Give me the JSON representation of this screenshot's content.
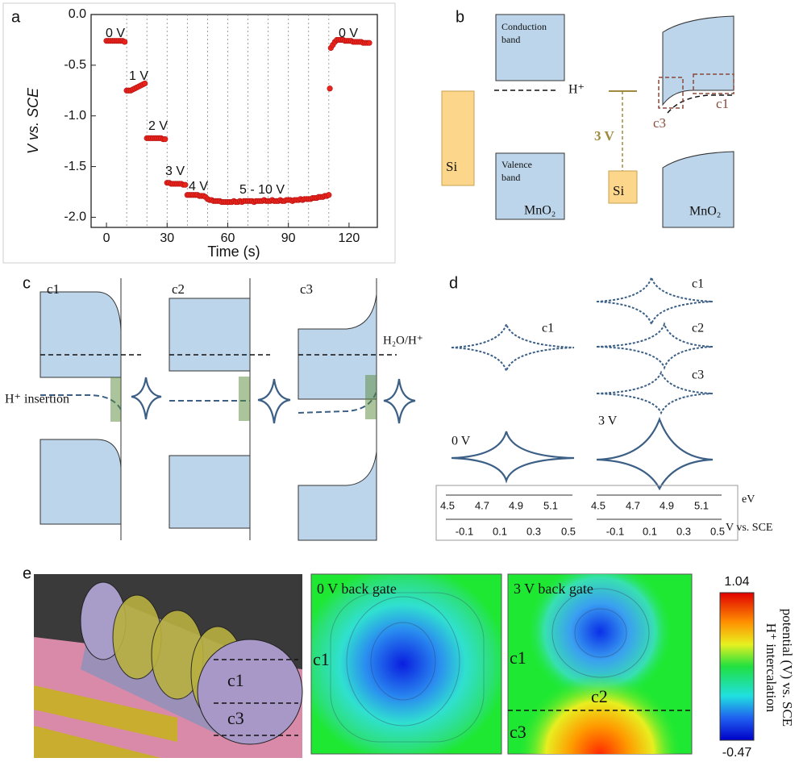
{
  "chart_data": {
    "type": "scatter",
    "panel": "a",
    "xlabel": "Time (s)",
    "ylabel": "V vs. SCE",
    "color": "#e8241c",
    "x": [
      0,
      1,
      2,
      3,
      4,
      5,
      6,
      7,
      8,
      9,
      10,
      11,
      12,
      13,
      14,
      15,
      16,
      17,
      18,
      19,
      20,
      21,
      22,
      23,
      24,
      25,
      26,
      27,
      28,
      29,
      30,
      31,
      32,
      33,
      34,
      35,
      36,
      37,
      38,
      39,
      40,
      41,
      42,
      43,
      44,
      45,
      46,
      47,
      48,
      49,
      50,
      51,
      52,
      53,
      54,
      55,
      56,
      57,
      58,
      59,
      60,
      61,
      62,
      63,
      64,
      65,
      66,
      67,
      68,
      69,
      70,
      71,
      72,
      73,
      74,
      75,
      76,
      77,
      78,
      79,
      80,
      81,
      82,
      83,
      84,
      85,
      86,
      87,
      88,
      89,
      90,
      91,
      92,
      93,
      94,
      95,
      96,
      97,
      98,
      99,
      100,
      101,
      102,
      103,
      104,
      105,
      106,
      107,
      108,
      109,
      110,
      110.5,
      111,
      112,
      113,
      114,
      115,
      116,
      117,
      118,
      119,
      120,
      121,
      122,
      123,
      124,
      125,
      126,
      127,
      128,
      129,
      130
    ],
    "values": [
      -0.26,
      -0.26,
      -0.26,
      -0.26,
      -0.26,
      -0.26,
      -0.26,
      -0.26,
      -0.26,
      -0.27,
      -0.75,
      -0.75,
      -0.75,
      -0.74,
      -0.73,
      -0.72,
      -0.71,
      -0.7,
      -0.69,
      -0.68,
      -1.22,
      -1.22,
      -1.22,
      -1.22,
      -1.22,
      -1.22,
      -1.22,
      -1.22,
      -1.23,
      -1.23,
      -1.66,
      -1.66,
      -1.67,
      -1.67,
      -1.67,
      -1.67,
      -1.67,
      -1.67,
      -1.68,
      -1.68,
      -1.78,
      -1.78,
      -1.78,
      -1.78,
      -1.78,
      -1.78,
      -1.79,
      -1.79,
      -1.79,
      -1.8,
      -1.82,
      -1.83,
      -1.83,
      -1.84,
      -1.84,
      -1.84,
      -1.84,
      -1.85,
      -1.85,
      -1.85,
      -1.85,
      -1.85,
      -1.85,
      -1.84,
      -1.85,
      -1.85,
      -1.84,
      -1.85,
      -1.84,
      -1.84,
      -1.84,
      -1.84,
      -1.84,
      -1.85,
      -1.84,
      -1.84,
      -1.84,
      -1.84,
      -1.83,
      -1.84,
      -1.84,
      -1.84,
      -1.83,
      -1.84,
      -1.84,
      -1.84,
      -1.83,
      -1.84,
      -1.84,
      -1.83,
      -1.83,
      -1.83,
      -1.84,
      -1.83,
      -1.83,
      -1.83,
      -1.82,
      -1.83,
      -1.82,
      -1.82,
      -1.82,
      -1.82,
      -1.81,
      -1.81,
      -1.81,
      -1.8,
      -1.8,
      -1.8,
      -1.79,
      -1.79,
      -1.78,
      -0.73,
      -0.33,
      -0.3,
      -0.27,
      -0.25,
      -0.25,
      -0.25,
      -0.25,
      -0.26,
      -0.26,
      -0.26,
      -0.26,
      -0.27,
      -0.27,
      -0.27,
      -0.27,
      -0.27,
      -0.28,
      -0.28,
      -0.28,
      -0.28
    ],
    "xlim": [
      -7.6,
      134
    ],
    "ylim": [
      -2.1,
      0
    ],
    "xticks": [
      0,
      30,
      60,
      90,
      120
    ],
    "yticks": [
      {
        "value": 0,
        "label": "0.0"
      },
      -0.5,
      {
        "value": -1,
        "label": "-1.0"
      },
      -1.5,
      {
        "value": -2,
        "label": "-2.0"
      }
    ],
    "vlines": [
      10,
      20,
      30,
      40,
      50,
      60,
      70,
      80,
      90,
      100,
      110
    ],
    "annotations": [
      "0 V",
      "1 V",
      "2 V",
      "3 V",
      "4 V",
      "5 - 10 V",
      "0 V"
    ]
  },
  "panel_b": {
    "label": "b",
    "conduction": [
      "Conduction",
      "band"
    ],
    "valence": [
      "Valence",
      "band"
    ],
    "h": "H⁺",
    "si": "Si",
    "mno2": "MnO₂",
    "gate": "3 V",
    "si2": "Si",
    "mno2_2": "MnO₂",
    "c3": "c3",
    "c1": "c1"
  },
  "panel_c": {
    "label": "c",
    "c1": "c1",
    "c2": "c2",
    "c3": "c3",
    "redox": "H₂O/H⁺",
    "insertion": "H⁺ insertion"
  },
  "panel_d": {
    "label": "d",
    "c1a": "c1",
    "c1b": "c1",
    "c2": "c2",
    "c3": "c3",
    "v0": "0 V",
    "v3": "3 V",
    "ev_ticks": [
      "4.5",
      "4.7",
      "4.9",
      "5.1"
    ],
    "ev_ticks2": [
      "4.5",
      "4.7",
      "4.9",
      "5.1"
    ],
    "ev": "eV",
    "v_ticks": [
      "-0.1",
      "0.1",
      "0.3",
      "0.5"
    ],
    "v_ticks2": [
      "-0.1",
      "0.1",
      "0.3",
      "0.5"
    ],
    "vs": "V vs. SCE"
  },
  "panel_e": {
    "label": "e",
    "c1": "c1",
    "c3": "c3",
    "title0": "0 V back gate",
    "m0c1": "c1",
    "title3": "3 V back gate",
    "m3c1": "c1",
    "m3c2": "c2",
    "m3c3": "c3",
    "cbar_max": 1.04,
    "cbar_min": -0.47,
    "cbar_label": [
      "H⁺ intercalation",
      "potential (V) vs. SCE"
    ]
  }
}
